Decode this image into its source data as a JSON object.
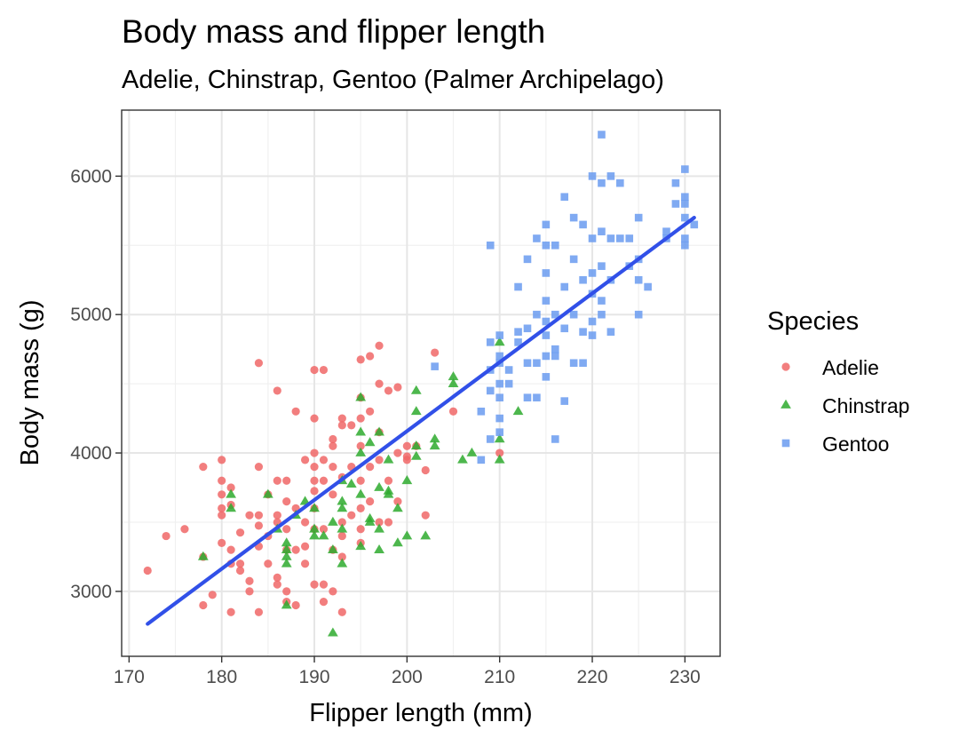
{
  "chart_data": {
    "type": "scatter",
    "title": "Body mass and flipper length",
    "subtitle": "Adelie, Chinstrap, Gentoo (Palmer Archipelago)",
    "xlabel": "Flipper length (mm)",
    "ylabel": "Body mass (g)",
    "xlim": [
      169.2,
      233.8
    ],
    "ylim": [
      2531,
      6477
    ],
    "xticks": [
      170,
      180,
      190,
      200,
      210,
      220,
      230
    ],
    "yticks": [
      3000,
      4000,
      5000,
      6000
    ],
    "grid": true,
    "legend": {
      "title": "Species",
      "position": "right",
      "entries": [
        "Adelie",
        "Chinstrap",
        "Gentoo"
      ]
    },
    "series": [
      {
        "name": "Adelie",
        "marker": "circle",
        "color": "#f06767",
        "points": [
          [
            172,
            3150
          ],
          [
            174,
            3400
          ],
          [
            176,
            3450
          ],
          [
            178,
            3900
          ],
          [
            178,
            3250
          ],
          [
            178,
            2900
          ],
          [
            179,
            2975
          ],
          [
            180,
            3950
          ],
          [
            180,
            3800
          ],
          [
            180,
            3700
          ],
          [
            180,
            3600
          ],
          [
            180,
            3550
          ],
          [
            180,
            3350
          ],
          [
            181,
            3750
          ],
          [
            181,
            3625
          ],
          [
            181,
            3300
          ],
          [
            181,
            3200
          ],
          [
            181,
            2850
          ],
          [
            182,
            3425
          ],
          [
            182,
            3200
          ],
          [
            182,
            3150
          ],
          [
            183,
            3550
          ],
          [
            183,
            3075
          ],
          [
            183,
            3000
          ],
          [
            184,
            4650
          ],
          [
            184,
            3900
          ],
          [
            184,
            3550
          ],
          [
            184,
            3475
          ],
          [
            184,
            3325
          ],
          [
            184,
            2850
          ],
          [
            185,
            3700
          ],
          [
            185,
            3400
          ],
          [
            185,
            3200
          ],
          [
            186,
            4450
          ],
          [
            186,
            3800
          ],
          [
            186,
            3550
          ],
          [
            186,
            3500
          ],
          [
            186,
            3100
          ],
          [
            186,
            3050
          ],
          [
            187,
            3800
          ],
          [
            187,
            3650
          ],
          [
            187,
            3450
          ],
          [
            187,
            3300
          ],
          [
            187,
            3000
          ],
          [
            187,
            2925
          ],
          [
            188,
            4300
          ],
          [
            188,
            3600
          ],
          [
            188,
            3300
          ],
          [
            188,
            2900
          ],
          [
            189,
            3950
          ],
          [
            189,
            3500
          ],
          [
            189,
            3325
          ],
          [
            189,
            3200
          ],
          [
            190,
            4600
          ],
          [
            190,
            4250
          ],
          [
            190,
            4000
          ],
          [
            190,
            3900
          ],
          [
            190,
            3800
          ],
          [
            190,
            3725
          ],
          [
            190,
            3600
          ],
          [
            190,
            3450
          ],
          [
            190,
            3050
          ],
          [
            191,
            4600
          ],
          [
            191,
            3950
          ],
          [
            191,
            3800
          ],
          [
            191,
            3450
          ],
          [
            191,
            3050
          ],
          [
            191,
            2925
          ],
          [
            192,
            4100
          ],
          [
            192,
            4050
          ],
          [
            192,
            3900
          ],
          [
            192,
            3700
          ],
          [
            192,
            3300
          ],
          [
            192,
            3000
          ],
          [
            193,
            4250
          ],
          [
            193,
            4200
          ],
          [
            193,
            3825
          ],
          [
            193,
            3500
          ],
          [
            193,
            3400
          ],
          [
            193,
            3250
          ],
          [
            193,
            2850
          ],
          [
            194,
            4200
          ],
          [
            194,
            3900
          ],
          [
            194,
            3550
          ],
          [
            195,
            4675
          ],
          [
            195,
            4400
          ],
          [
            195,
            4250
          ],
          [
            195,
            4050
          ],
          [
            195,
            3800
          ],
          [
            195,
            3600
          ],
          [
            195,
            3450
          ],
          [
            195,
            3350
          ],
          [
            196,
            4700
          ],
          [
            196,
            4300
          ],
          [
            196,
            3900
          ],
          [
            196,
            3650
          ],
          [
            197,
            4775
          ],
          [
            197,
            4500
          ],
          [
            197,
            4150
          ],
          [
            197,
            3950
          ],
          [
            197,
            3500
          ],
          [
            198,
            4450
          ],
          [
            198,
            3800
          ],
          [
            198,
            3500
          ],
          [
            199,
            4475
          ],
          [
            199,
            4000
          ],
          [
            199,
            3650
          ],
          [
            200,
            4050
          ],
          [
            200,
            3975
          ],
          [
            200,
            3950
          ],
          [
            201,
            4050
          ],
          [
            202,
            3875
          ],
          [
            202,
            3550
          ],
          [
            203,
            4725
          ],
          [
            205,
            4300
          ],
          [
            210,
            4000
          ]
        ]
      },
      {
        "name": "Chinstrap",
        "marker": "triangle",
        "color": "#2eaa2e",
        "points": [
          [
            178,
            3250
          ],
          [
            181,
            3700
          ],
          [
            181,
            3600
          ],
          [
            185,
            3700
          ],
          [
            186,
            3450
          ],
          [
            187,
            3350
          ],
          [
            187,
            3300
          ],
          [
            187,
            3250
          ],
          [
            187,
            3200
          ],
          [
            187,
            2900
          ],
          [
            188,
            3550
          ],
          [
            189,
            3650
          ],
          [
            190,
            3450
          ],
          [
            190,
            3400
          ],
          [
            190,
            3600
          ],
          [
            191,
            3400
          ],
          [
            192,
            3500
          ],
          [
            192,
            3300
          ],
          [
            192,
            2700
          ],
          [
            193,
            3800
          ],
          [
            193,
            3650
          ],
          [
            193,
            3600
          ],
          [
            193,
            3450
          ],
          [
            193,
            3200
          ],
          [
            194,
            3775
          ],
          [
            195,
            4400
          ],
          [
            195,
            4150
          ],
          [
            195,
            4000
          ],
          [
            195,
            3700
          ],
          [
            195,
            3325
          ],
          [
            196,
            4075
          ],
          [
            196,
            3525
          ],
          [
            196,
            3500
          ],
          [
            197,
            4150
          ],
          [
            197,
            3750
          ],
          [
            197,
            3450
          ],
          [
            197,
            3300
          ],
          [
            198,
            3950
          ],
          [
            198,
            3725
          ],
          [
            198,
            3700
          ],
          [
            199,
            3600
          ],
          [
            199,
            3350
          ],
          [
            200,
            3800
          ],
          [
            200,
            3400
          ],
          [
            201,
            4450
          ],
          [
            201,
            4300
          ],
          [
            201,
            4050
          ],
          [
            201,
            3975
          ],
          [
            202,
            3400
          ],
          [
            203,
            4100
          ],
          [
            203,
            4050
          ],
          [
            205,
            4550
          ],
          [
            205,
            4500
          ],
          [
            206,
            3950
          ],
          [
            207,
            4000
          ],
          [
            210,
            4800
          ],
          [
            210,
            4100
          ],
          [
            210,
            3950
          ],
          [
            212,
            4300
          ]
        ]
      },
      {
        "name": "Gentoo",
        "marker": "square",
        "color": "#6a9bf0",
        "points": [
          [
            203,
            4625
          ],
          [
            208,
            4300
          ],
          [
            208,
            3950
          ],
          [
            209,
            5500
          ],
          [
            209,
            4800
          ],
          [
            209,
            4600
          ],
          [
            209,
            4450
          ],
          [
            209,
            4100
          ],
          [
            210,
            4850
          ],
          [
            210,
            4700
          ],
          [
            210,
            4650
          ],
          [
            210,
            4500
          ],
          [
            210,
            4400
          ],
          [
            210,
            4250
          ],
          [
            210,
            4150
          ],
          [
            211,
            4600
          ],
          [
            211,
            4500
          ],
          [
            212,
            4875
          ],
          [
            212,
            4800
          ],
          [
            212,
            5200
          ],
          [
            213,
            5400
          ],
          [
            213,
            4900
          ],
          [
            213,
            4650
          ],
          [
            213,
            4400
          ],
          [
            214,
            5550
          ],
          [
            214,
            5000
          ],
          [
            214,
            4650
          ],
          [
            214,
            4400
          ],
          [
            215,
            5650
          ],
          [
            215,
            5500
          ],
          [
            215,
            5300
          ],
          [
            215,
            5100
          ],
          [
            215,
            4950
          ],
          [
            215,
            4850
          ],
          [
            215,
            4700
          ],
          [
            215,
            4550
          ],
          [
            216,
            5500
          ],
          [
            216,
            5000
          ],
          [
            216,
            4750
          ],
          [
            216,
            4700
          ],
          [
            216,
            4100
          ],
          [
            217,
            5850
          ],
          [
            217,
            5200
          ],
          [
            217,
            4900
          ],
          [
            217,
            4375
          ],
          [
            218,
            5700
          ],
          [
            218,
            5400
          ],
          [
            218,
            5000
          ],
          [
            218,
            4650
          ],
          [
            219,
            5650
          ],
          [
            219,
            5250
          ],
          [
            219,
            4875
          ],
          [
            219,
            4650
          ],
          [
            220,
            6000
          ],
          [
            220,
            5550
          ],
          [
            220,
            5300
          ],
          [
            220,
            5150
          ],
          [
            220,
            4950
          ],
          [
            220,
            4850
          ],
          [
            221,
            6300
          ],
          [
            221,
            5950
          ],
          [
            221,
            5600
          ],
          [
            221,
            5350
          ],
          [
            221,
            5100
          ],
          [
            221,
            5000
          ],
          [
            222,
            6000
          ],
          [
            222,
            5550
          ],
          [
            222,
            5250
          ],
          [
            222,
            4875
          ],
          [
            223,
            5950
          ],
          [
            223,
            5550
          ],
          [
            224,
            5550
          ],
          [
            224,
            5350
          ],
          [
            225,
            5700
          ],
          [
            225,
            5400
          ],
          [
            225,
            5250
          ],
          [
            225,
            5000
          ],
          [
            226,
            5200
          ],
          [
            228,
            5600
          ],
          [
            228,
            5550
          ],
          [
            229,
            5800
          ],
          [
            229,
            5950
          ],
          [
            230,
            6050
          ],
          [
            230,
            5850
          ],
          [
            230,
            5800
          ],
          [
            230,
            5700
          ],
          [
            230,
            5550
          ],
          [
            230,
            5500
          ],
          [
            231,
            5650
          ]
        ]
      }
    ],
    "trend_line": {
      "type": "linear",
      "color": "#3150e8",
      "x": [
        172,
        231
      ],
      "y": [
        2765,
        5700
      ]
    }
  }
}
